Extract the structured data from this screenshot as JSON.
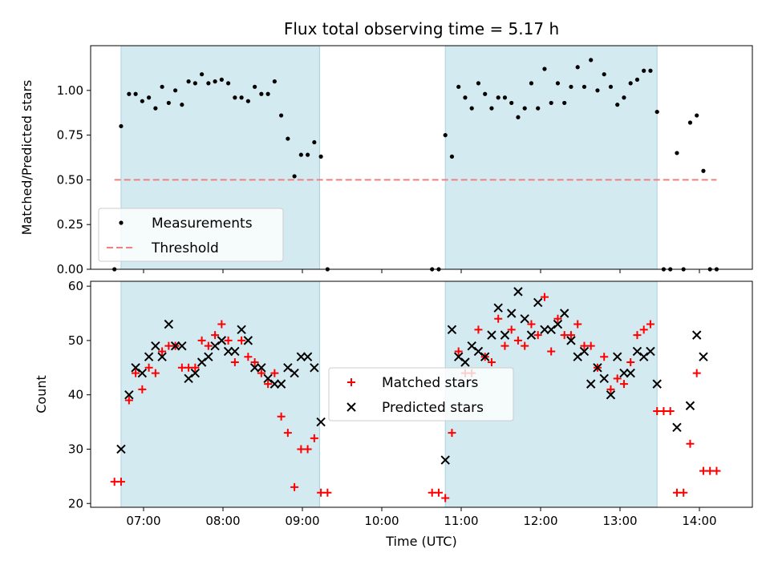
{
  "chart_data": [
    {
      "type": "scatter",
      "title": "Flux total observing time = 5.17 h",
      "xlabel": "",
      "ylabel": "Matched/Predicted stars",
      "x_unit": "time_utc",
      "xlim": [
        "06:20",
        "14:40"
      ],
      "ylim": [
        0,
        1.25
      ],
      "xticks": [
        "07:00",
        "08:00",
        "09:00",
        "10:00",
        "11:00",
        "12:00",
        "13:00",
        "14:00"
      ],
      "yticks": [
        "0.00",
        "0.25",
        "0.50",
        "0.75",
        "1.00"
      ],
      "shaded_intervals": [
        [
          "06:43",
          "09:13"
        ],
        [
          "10:48",
          "13:28"
        ]
      ],
      "shade_color": "#d3eaf1",
      "legend_position": "lower-left",
      "threshold": {
        "name": "Threshold",
        "value": 0.5,
        "x_range": [
          "06:38",
          "14:13"
        ],
        "color": "#f08080"
      },
      "series": [
        {
          "name": "Measurements",
          "marker": "dot",
          "color": "#000000",
          "points": [
            [
              "06:38",
              0.0
            ],
            [
              "06:43",
              0.8
            ],
            [
              "06:49",
              0.98
            ],
            [
              "06:54",
              0.98
            ],
            [
              "06:59",
              0.94
            ],
            [
              "07:04",
              0.96
            ],
            [
              "07:09",
              0.9
            ],
            [
              "07:14",
              1.02
            ],
            [
              "07:19",
              0.93
            ],
            [
              "07:24",
              1.0
            ],
            [
              "07:29",
              0.92
            ],
            [
              "07:34",
              1.05
            ],
            [
              "07:39",
              1.04
            ],
            [
              "07:44",
              1.09
            ],
            [
              "07:49",
              1.04
            ],
            [
              "07:54",
              1.05
            ],
            [
              "07:59",
              1.06
            ],
            [
              "08:04",
              1.04
            ],
            [
              "08:09",
              0.96
            ],
            [
              "08:14",
              0.96
            ],
            [
              "08:19",
              0.94
            ],
            [
              "08:24",
              1.02
            ],
            [
              "08:29",
              0.98
            ],
            [
              "08:34",
              0.98
            ],
            [
              "08:39",
              1.05
            ],
            [
              "08:44",
              0.86
            ],
            [
              "08:49",
              0.73
            ],
            [
              "08:54",
              0.52
            ],
            [
              "08:59",
              0.64
            ],
            [
              "09:04",
              0.64
            ],
            [
              "09:09",
              0.71
            ],
            [
              "09:14",
              0.63
            ],
            [
              "09:19",
              0.0
            ],
            [
              "10:38",
              0.0
            ],
            [
              "10:43",
              0.0
            ],
            [
              "10:48",
              0.75
            ],
            [
              "10:53",
              0.63
            ],
            [
              "10:58",
              1.02
            ],
            [
              "11:03",
              0.96
            ],
            [
              "11:08",
              0.9
            ],
            [
              "11:13",
              1.04
            ],
            [
              "11:18",
              0.98
            ],
            [
              "11:23",
              0.9
            ],
            [
              "11:28",
              0.96
            ],
            [
              "11:33",
              0.96
            ],
            [
              "11:38",
              0.93
            ],
            [
              "11:43",
              0.85
            ],
            [
              "11:48",
              0.9
            ],
            [
              "11:53",
              1.04
            ],
            [
              "11:58",
              0.9
            ],
            [
              "12:03",
              1.12
            ],
            [
              "12:08",
              0.93
            ],
            [
              "12:13",
              1.04
            ],
            [
              "12:18",
              0.93
            ],
            [
              "12:23",
              1.02
            ],
            [
              "12:28",
              1.13
            ],
            [
              "12:33",
              1.02
            ],
            [
              "12:38",
              1.17
            ],
            [
              "12:43",
              1.0
            ],
            [
              "12:48",
              1.09
            ],
            [
              "12:53",
              1.02
            ],
            [
              "12:58",
              0.92
            ],
            [
              "13:03",
              0.96
            ],
            [
              "13:08",
              1.04
            ],
            [
              "13:13",
              1.06
            ],
            [
              "13:18",
              1.11
            ],
            [
              "13:23",
              1.11
            ],
            [
              "13:28",
              0.88
            ],
            [
              "13:33",
              0.0
            ],
            [
              "13:38",
              0.0
            ],
            [
              "13:43",
              0.65
            ],
            [
              "13:48",
              0.0
            ],
            [
              "13:53",
              0.82
            ],
            [
              "13:58",
              0.86
            ],
            [
              "14:03",
              0.55
            ],
            [
              "14:08",
              0.0
            ],
            [
              "14:13",
              0.0
            ]
          ]
        }
      ]
    },
    {
      "type": "scatter",
      "title": "",
      "xlabel": "Time (UTC)",
      "ylabel": "Count",
      "x_unit": "time_utc",
      "xlim": [
        "06:20",
        "14:40"
      ],
      "ylim": [
        19.3,
        60.9
      ],
      "xticks": [
        "07:00",
        "08:00",
        "09:00",
        "10:00",
        "11:00",
        "12:00",
        "13:00",
        "14:00"
      ],
      "yticks": [
        "20",
        "30",
        "40",
        "50",
        "60"
      ],
      "shaded_intervals": [
        [
          "06:43",
          "09:13"
        ],
        [
          "10:48",
          "13:28"
        ]
      ],
      "shade_color": "#d3eaf1",
      "legend_position": "center",
      "series": [
        {
          "name": "Matched stars",
          "marker": "plus",
          "color": "#ff0000",
          "points": [
            [
              "06:38",
              24
            ],
            [
              "06:43",
              24
            ],
            [
              "06:49",
              39
            ],
            [
              "06:54",
              44
            ],
            [
              "06:59",
              41
            ],
            [
              "07:04",
              45
            ],
            [
              "07:09",
              44
            ],
            [
              "07:14",
              48
            ],
            [
              "07:19",
              49
            ],
            [
              "07:24",
              49
            ],
            [
              "07:29",
              45
            ],
            [
              "07:34",
              45
            ],
            [
              "07:39",
              45
            ],
            [
              "07:44",
              50
            ],
            [
              "07:49",
              49
            ],
            [
              "07:54",
              51
            ],
            [
              "07:59",
              53
            ],
            [
              "08:04",
              50
            ],
            [
              "08:09",
              46
            ],
            [
              "08:14",
              50
            ],
            [
              "08:19",
              47
            ],
            [
              "08:24",
              46
            ],
            [
              "08:29",
              44
            ],
            [
              "08:34",
              42
            ],
            [
              "08:39",
              44
            ],
            [
              "08:44",
              36
            ],
            [
              "08:49",
              33
            ],
            [
              "08:54",
              23
            ],
            [
              "08:59",
              30
            ],
            [
              "09:04",
              30
            ],
            [
              "09:09",
              32
            ],
            [
              "09:14",
              22
            ],
            [
              "09:19",
              22
            ],
            [
              "10:38",
              22
            ],
            [
              "10:43",
              22
            ],
            [
              "10:48",
              21
            ],
            [
              "10:53",
              33
            ],
            [
              "10:58",
              48
            ],
            [
              "11:03",
              44
            ],
            [
              "11:08",
              44
            ],
            [
              "11:13",
              52
            ],
            [
              "11:18",
              47
            ],
            [
              "11:23",
              46
            ],
            [
              "11:28",
              54
            ],
            [
              "11:33",
              49
            ],
            [
              "11:38",
              52
            ],
            [
              "11:43",
              50
            ],
            [
              "11:48",
              49
            ],
            [
              "11:53",
              53
            ],
            [
              "11:58",
              51
            ],
            [
              "12:03",
              58
            ],
            [
              "12:08",
              48
            ],
            [
              "12:13",
              54
            ],
            [
              "12:18",
              51
            ],
            [
              "12:23",
              51
            ],
            [
              "12:28",
              53
            ],
            [
              "12:33",
              49
            ],
            [
              "12:38",
              49
            ],
            [
              "12:43",
              45
            ],
            [
              "12:48",
              47
            ],
            [
              "12:53",
              41
            ],
            [
              "12:58",
              43
            ],
            [
              "13:03",
              42
            ],
            [
              "13:08",
              46
            ],
            [
              "13:13",
              51
            ],
            [
              "13:18",
              52
            ],
            [
              "13:23",
              53
            ],
            [
              "13:28",
              37
            ],
            [
              "13:33",
              37
            ],
            [
              "13:38",
              37
            ],
            [
              "13:43",
              22
            ],
            [
              "13:48",
              22
            ],
            [
              "13:53",
              31
            ],
            [
              "13:58",
              44
            ],
            [
              "14:03",
              26
            ],
            [
              "14:08",
              26
            ],
            [
              "14:13",
              26
            ]
          ]
        },
        {
          "name": "Predicted stars",
          "marker": "x",
          "color": "#000000",
          "points": [
            [
              "06:43",
              30
            ],
            [
              "06:49",
              40
            ],
            [
              "06:54",
              45
            ],
            [
              "06:59",
              44
            ],
            [
              "07:04",
              47
            ],
            [
              "07:09",
              49
            ],
            [
              "07:14",
              47
            ],
            [
              "07:19",
              53
            ],
            [
              "07:24",
              49
            ],
            [
              "07:29",
              49
            ],
            [
              "07:34",
              43
            ],
            [
              "07:39",
              44
            ],
            [
              "07:44",
              46
            ],
            [
              "07:49",
              47
            ],
            [
              "07:54",
              49
            ],
            [
              "07:59",
              50
            ],
            [
              "08:04",
              48
            ],
            [
              "08:09",
              48
            ],
            [
              "08:14",
              52
            ],
            [
              "08:19",
              50
            ],
            [
              "08:24",
              45
            ],
            [
              "08:29",
              45
            ],
            [
              "08:34",
              43
            ],
            [
              "08:39",
              42
            ],
            [
              "08:44",
              42
            ],
            [
              "08:49",
              45
            ],
            [
              "08:54",
              44
            ],
            [
              "08:59",
              47
            ],
            [
              "09:04",
              47
            ],
            [
              "09:09",
              45
            ],
            [
              "09:14",
              35
            ],
            [
              "10:48",
              28
            ],
            [
              "10:53",
              52
            ],
            [
              "10:58",
              47
            ],
            [
              "11:03",
              46
            ],
            [
              "11:08",
              49
            ],
            [
              "11:13",
              48
            ],
            [
              "11:18",
              47
            ],
            [
              "11:23",
              51
            ],
            [
              "11:28",
              56
            ],
            [
              "11:33",
              51
            ],
            [
              "11:38",
              55
            ],
            [
              "11:43",
              59
            ],
            [
              "11:48",
              54
            ],
            [
              "11:53",
              51
            ],
            [
              "11:58",
              57
            ],
            [
              "12:03",
              52
            ],
            [
              "12:08",
              52
            ],
            [
              "12:13",
              53
            ],
            [
              "12:18",
              55
            ],
            [
              "12:23",
              50
            ],
            [
              "12:28",
              47
            ],
            [
              "12:33",
              48
            ],
            [
              "12:38",
              42
            ],
            [
              "12:43",
              45
            ],
            [
              "12:48",
              43
            ],
            [
              "12:53",
              40
            ],
            [
              "12:58",
              47
            ],
            [
              "13:03",
              44
            ],
            [
              "13:08",
              44
            ],
            [
              "13:13",
              48
            ],
            [
              "13:18",
              47
            ],
            [
              "13:23",
              48
            ],
            [
              "13:28",
              42
            ],
            [
              "13:43",
              34
            ],
            [
              "13:53",
              38
            ],
            [
              "13:58",
              51
            ],
            [
              "14:03",
              47
            ]
          ]
        }
      ]
    }
  ]
}
